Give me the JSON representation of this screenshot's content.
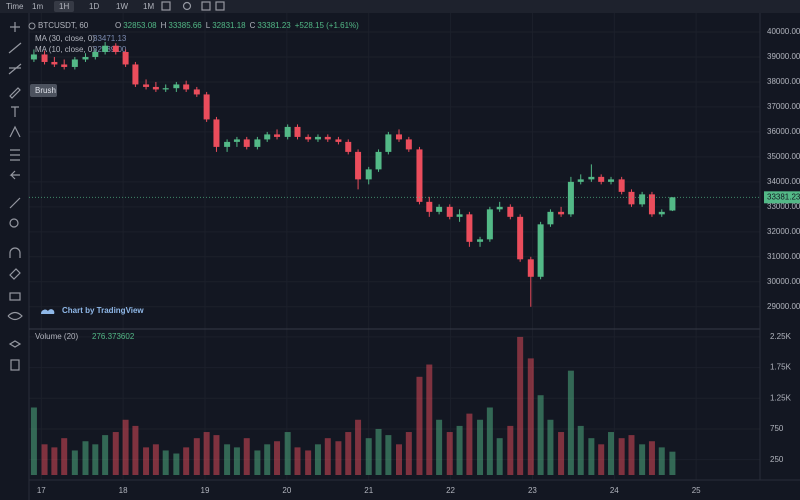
{
  "toolbar": {
    "time": "Time",
    "intervals": [
      "1m",
      "1H",
      "1D",
      "1W",
      "1M"
    ]
  },
  "legend": {
    "symbol": "BTCUSDT, 60",
    "labels": [
      "O",
      "H",
      "L",
      "C"
    ],
    "change": "+528.15 (+1.61%)",
    "ma": [
      {
        "name": "MA (30, close, 0)",
        "value": "33471.13"
      },
      {
        "name": "MA (10, close, 0)",
        "value": "32939.00"
      }
    ],
    "volume": {
      "name": "Volume (20)",
      "value": "276.373602"
    }
  },
  "tooltip": "Brush",
  "watermark": "Chart by TradingView",
  "chart_data": {
    "type": "candlestick",
    "x": [
      16.91,
      17.04,
      17.16,
      17.28,
      17.41,
      17.54,
      17.66,
      17.78,
      17.91,
      18.03,
      18.15,
      18.28,
      18.4,
      18.52,
      18.65,
      18.77,
      18.9,
      19.02,
      19.14,
      19.27,
      19.39,
      19.51,
      19.64,
      19.76,
      19.88,
      20.01,
      20.13,
      20.26,
      20.38,
      20.5,
      20.63,
      20.75,
      20.87,
      21.0,
      21.12,
      21.24,
      21.37,
      21.49,
      21.62,
      21.74,
      21.86,
      21.99,
      22.11,
      22.23,
      22.36,
      22.48,
      22.6,
      22.73,
      22.85,
      22.98,
      23.1,
      23.22,
      23.35,
      23.47,
      23.59,
      23.72,
      23.84,
      23.96,
      24.09,
      24.21,
      24.34,
      24.46,
      24.58,
      24.71
    ],
    "open": [
      38900,
      39100,
      38800,
      38700,
      38600,
      38900,
      39000,
      39200,
      39450,
      39200,
      38700,
      37900,
      37800,
      37700,
      37750,
      37900,
      37700,
      37500,
      36500,
      35400,
      35600,
      35700,
      35400,
      35700,
      35900,
      35800,
      36200,
      35800,
      35700,
      35800,
      35700,
      35600,
      35200,
      34100,
      34500,
      35200,
      35900,
      35700,
      35300,
      33200,
      32800,
      33000,
      32600,
      32700,
      31600,
      31700,
      32900,
      33000,
      32600,
      30900,
      30200,
      32300,
      32800,
      32700,
      34000,
      34100,
      34200,
      34000,
      34100,
      33600,
      33100,
      33500,
      32700,
      32853.08
    ],
    "high": [
      39300,
      39250,
      39000,
      38900,
      39000,
      39150,
      39300,
      39600,
      39550,
      39300,
      38800,
      38100,
      38000,
      37900,
      38000,
      38050,
      37800,
      37600,
      36600,
      35700,
      35800,
      35800,
      35800,
      36000,
      36100,
      36300,
      36300,
      35900,
      35900,
      35900,
      35800,
      35700,
      35300,
      34600,
      35300,
      36000,
      36100,
      35800,
      35400,
      33400,
      33100,
      33100,
      32900,
      32800,
      31800,
      33000,
      33200,
      33100,
      32700,
      31000,
      32400,
      32900,
      33000,
      34200,
      34300,
      34700,
      34300,
      34200,
      34200,
      33700,
      33600,
      33600,
      32900,
      33385.66
    ],
    "low": [
      38800,
      38700,
      38600,
      38500,
      38500,
      38800,
      38900,
      39100,
      39100,
      38600,
      37800,
      37700,
      37600,
      37600,
      37600,
      37600,
      37400,
      36400,
      35200,
      35200,
      35400,
      35300,
      35300,
      35600,
      35700,
      35700,
      35700,
      35600,
      35600,
      35600,
      35500,
      35100,
      33700,
      33900,
      34400,
      35100,
      35600,
      35200,
      33100,
      32600,
      32700,
      32500,
      32400,
      31400,
      31400,
      31600,
      32800,
      32500,
      30800,
      29000,
      30100,
      32200,
      32600,
      32600,
      33900,
      34000,
      33900,
      33900,
      33500,
      33000,
      33000,
      32600,
      32600,
      32831.18
    ],
    "close": [
      39100,
      38800,
      38700,
      38600,
      38900,
      39000,
      39200,
      39450,
      39200,
      38700,
      37900,
      37800,
      37700,
      37750,
      37900,
      37700,
      37500,
      36500,
      35400,
      35600,
      35700,
      35400,
      35700,
      35900,
      35800,
      36200,
      35800,
      35700,
      35800,
      35700,
      35600,
      35200,
      34100,
      34500,
      35200,
      35900,
      35700,
      35300,
      33200,
      32800,
      33000,
      32600,
      32700,
      31600,
      31700,
      32900,
      33000,
      32600,
      30900,
      30200,
      32300,
      32800,
      32700,
      34000,
      34100,
      34200,
      34000,
      34100,
      33600,
      33100,
      33500,
      32700,
      32800,
      33381.23
    ],
    "volume": [
      1100,
      500,
      450,
      600,
      400,
      550,
      500,
      650,
      700,
      900,
      800,
      450,
      500,
      400,
      350,
      450,
      600,
      700,
      650,
      500,
      450,
      600,
      400,
      500,
      550,
      700,
      450,
      400,
      500,
      600,
      550,
      700,
      900,
      600,
      750,
      650,
      500,
      700,
      1600,
      1800,
      900,
      700,
      800,
      1000,
      900,
      1100,
      600,
      800,
      2250,
      1900,
      1300,
      900,
      700,
      1700,
      800,
      600,
      500,
      700,
      600,
      650,
      500,
      550,
      450,
      380
    ],
    "up_color": "#53b987",
    "down_color": "#eb4d5c",
    "xlim": [
      16.85,
      25.78
    ],
    "xticks": [
      17,
      18,
      19,
      20,
      21,
      22,
      23,
      24,
      25
    ],
    "ylim": [
      28150,
      40760
    ],
    "yticks": [
      {
        "value": 29000,
        "label": "29000.00"
      },
      {
        "value": 30000,
        "label": "30000.00"
      },
      {
        "value": 31000,
        "label": "31000.00"
      },
      {
        "value": 32000,
        "label": "32000.00"
      },
      {
        "value": 33000,
        "label": "33000.00"
      },
      {
        "value": 34000,
        "label": "34000.00"
      },
      {
        "value": 35000,
        "label": "35000.00"
      },
      {
        "value": 36000,
        "label": "36000.00"
      },
      {
        "value": 37000,
        "label": "37000.00"
      },
      {
        "value": 38000,
        "label": "38000.00"
      },
      {
        "value": 39000,
        "label": "39000.00"
      },
      {
        "value": 40000,
        "label": "40000.00"
      }
    ],
    "volume_ylim": [
      0,
      2330
    ],
    "volume_yticks": [
      250,
      750,
      {
        "value": 1250,
        "label": "1.25K"
      },
      {
        "value": 1750,
        "label": "1.75K"
      },
      {
        "value": 2250,
        "label": "2.25K"
      }
    ],
    "grid": true
  }
}
